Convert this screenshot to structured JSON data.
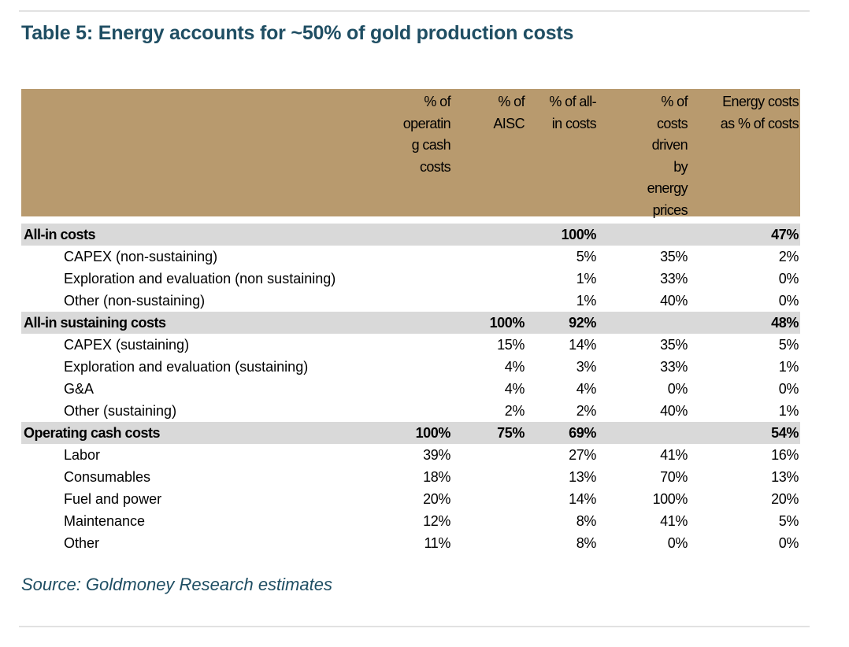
{
  "title": "Table 5: Energy accounts for ~50% of gold production costs",
  "columns": [
    {
      "lines": [
        "% of",
        "operatin",
        "g cash",
        "costs"
      ]
    },
    {
      "lines": [
        "% of",
        "AISC"
      ]
    },
    {
      "lines": [
        "% of all-",
        "in costs"
      ]
    },
    {
      "lines": [
        "% of",
        "costs",
        "driven",
        "by",
        "energy",
        "prices"
      ]
    },
    {
      "lines": [
        "Energy costs",
        "as % of costs"
      ]
    }
  ],
  "rows": [
    {
      "type": "group",
      "label": "All-in costs",
      "values": [
        "",
        "",
        "100%",
        "",
        "47%"
      ]
    },
    {
      "type": "sub",
      "label": "CAPEX (non-sustaining)",
      "values": [
        "",
        "",
        "5%",
        "35%",
        "2%"
      ]
    },
    {
      "type": "sub",
      "label": "Exploration and evaluation (non sustaining)",
      "values": [
        "",
        "",
        "1%",
        "33%",
        "0%"
      ]
    },
    {
      "type": "sub",
      "label": "Other (non-sustaining)",
      "values": [
        "",
        "",
        "1%",
        "40%",
        "0%"
      ]
    },
    {
      "type": "group",
      "label": "All-in sustaining costs",
      "values": [
        "",
        "100%",
        "92%",
        "",
        "48%"
      ]
    },
    {
      "type": "sub",
      "label": "CAPEX (sustaining)",
      "values": [
        "",
        "15%",
        "14%",
        "35%",
        "5%"
      ]
    },
    {
      "type": "sub",
      "label": "Exploration and evaluation (sustaining)",
      "values": [
        "",
        "4%",
        "3%",
        "33%",
        "1%"
      ]
    },
    {
      "type": "sub",
      "label": "G&A",
      "values": [
        "",
        "4%",
        "4%",
        "0%",
        "0%"
      ]
    },
    {
      "type": "sub",
      "label": "Other (sustaining)",
      "values": [
        "",
        "2%",
        "2%",
        "40%",
        "1%"
      ]
    },
    {
      "type": "group",
      "label": "Operating cash costs",
      "values": [
        "100%",
        "75%",
        "69%",
        "",
        "54%"
      ]
    },
    {
      "type": "sub",
      "label": "Labor",
      "values": [
        "39%",
        "",
        "27%",
        "41%",
        "16%"
      ]
    },
    {
      "type": "sub",
      "label": "Consumables",
      "values": [
        "18%",
        "",
        "13%",
        "70%",
        "13%"
      ]
    },
    {
      "type": "sub",
      "label": "Fuel and power",
      "values": [
        "20%",
        "",
        "14%",
        "100%",
        "20%"
      ]
    },
    {
      "type": "sub",
      "label": "Maintenance",
      "values": [
        "12%",
        "",
        "8%",
        "41%",
        "5%"
      ]
    },
    {
      "type": "sub",
      "label": "Other",
      "values": [
        "11%",
        "",
        "8%",
        "0%",
        "0%"
      ]
    }
  ],
  "source": "Source: Goldmoney Research estimates",
  "colors": {
    "header_bg": "#b89a6e",
    "group_bg": "#d9d9d9",
    "title": "#1f4e63"
  }
}
